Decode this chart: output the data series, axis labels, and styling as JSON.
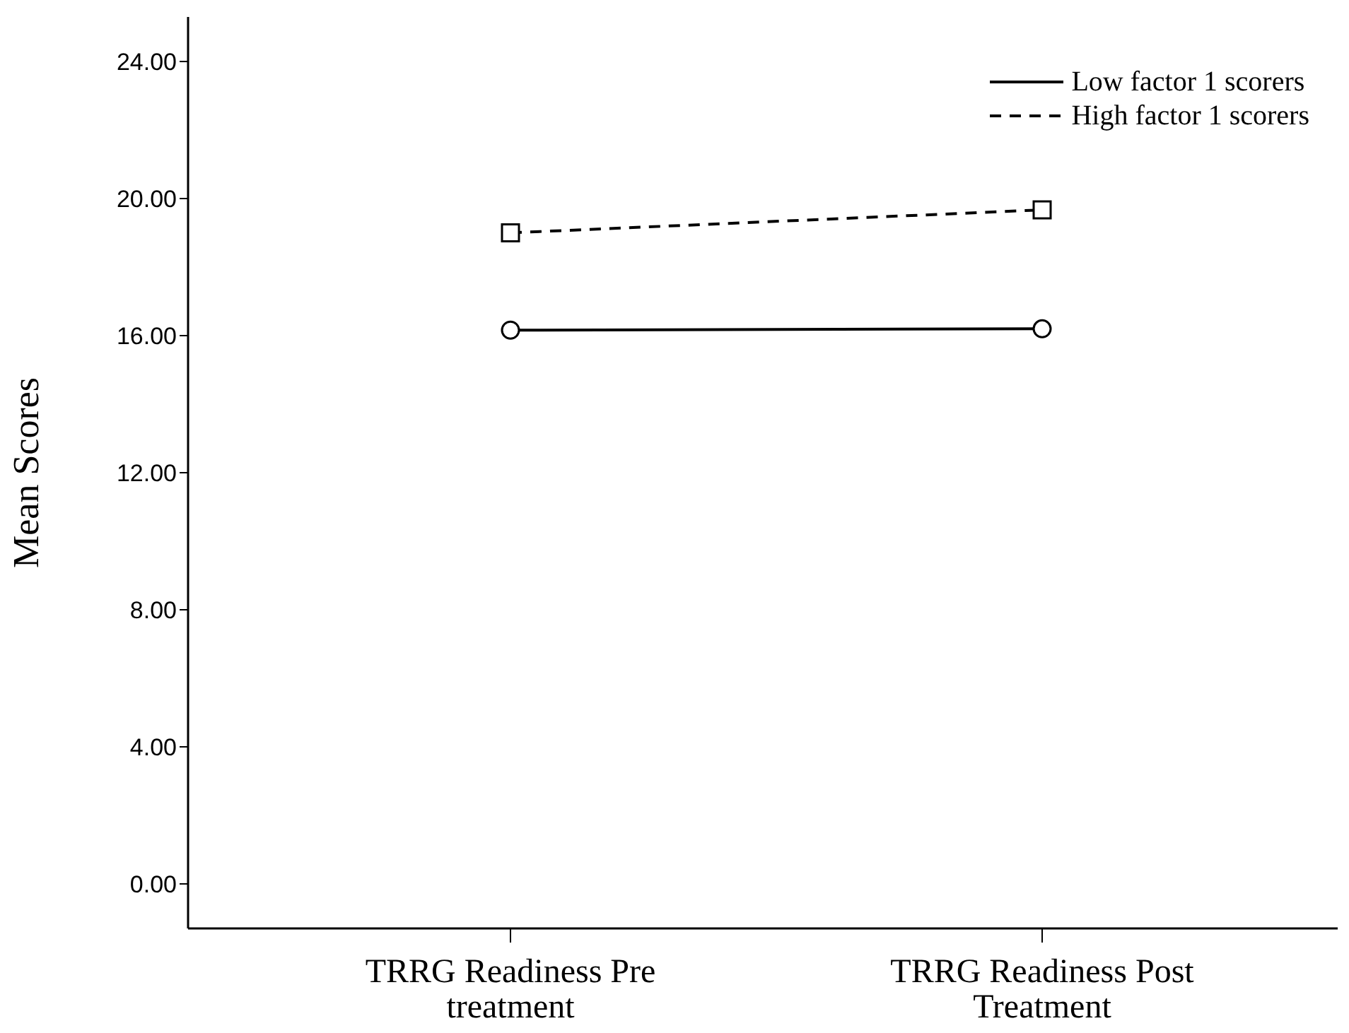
{
  "chart_data": {
    "type": "line",
    "ylabel": "Mean Scores",
    "categories": [
      "TRRG Readiness Pre treatment",
      "TRRG Readiness Post Treatment"
    ],
    "series": [
      {
        "name": "Low factor 1 scorers",
        "color": "#000000",
        "values": [
          16.16,
          16.2
        ],
        "marker": "circle",
        "line_style": "solid"
      },
      {
        "name": "High factor 1 scorers",
        "color": "#000000",
        "values": [
          19.0,
          19.67
        ],
        "marker": "square",
        "line_style": "dashed"
      }
    ],
    "ylim": [
      -1.3,
      25.3
    ],
    "yticks": [
      {
        "value": 0,
        "label": "0.00"
      },
      {
        "value": 4,
        "label": "4.00"
      },
      {
        "value": 8,
        "label": "8.00"
      },
      {
        "value": 12,
        "label": "12.00"
      },
      {
        "value": 16,
        "label": "16.00"
      },
      {
        "value": 20,
        "label": "20.00"
      },
      {
        "value": 24,
        "label": "24.00"
      }
    ],
    "grid": false,
    "legend": "top right"
  }
}
